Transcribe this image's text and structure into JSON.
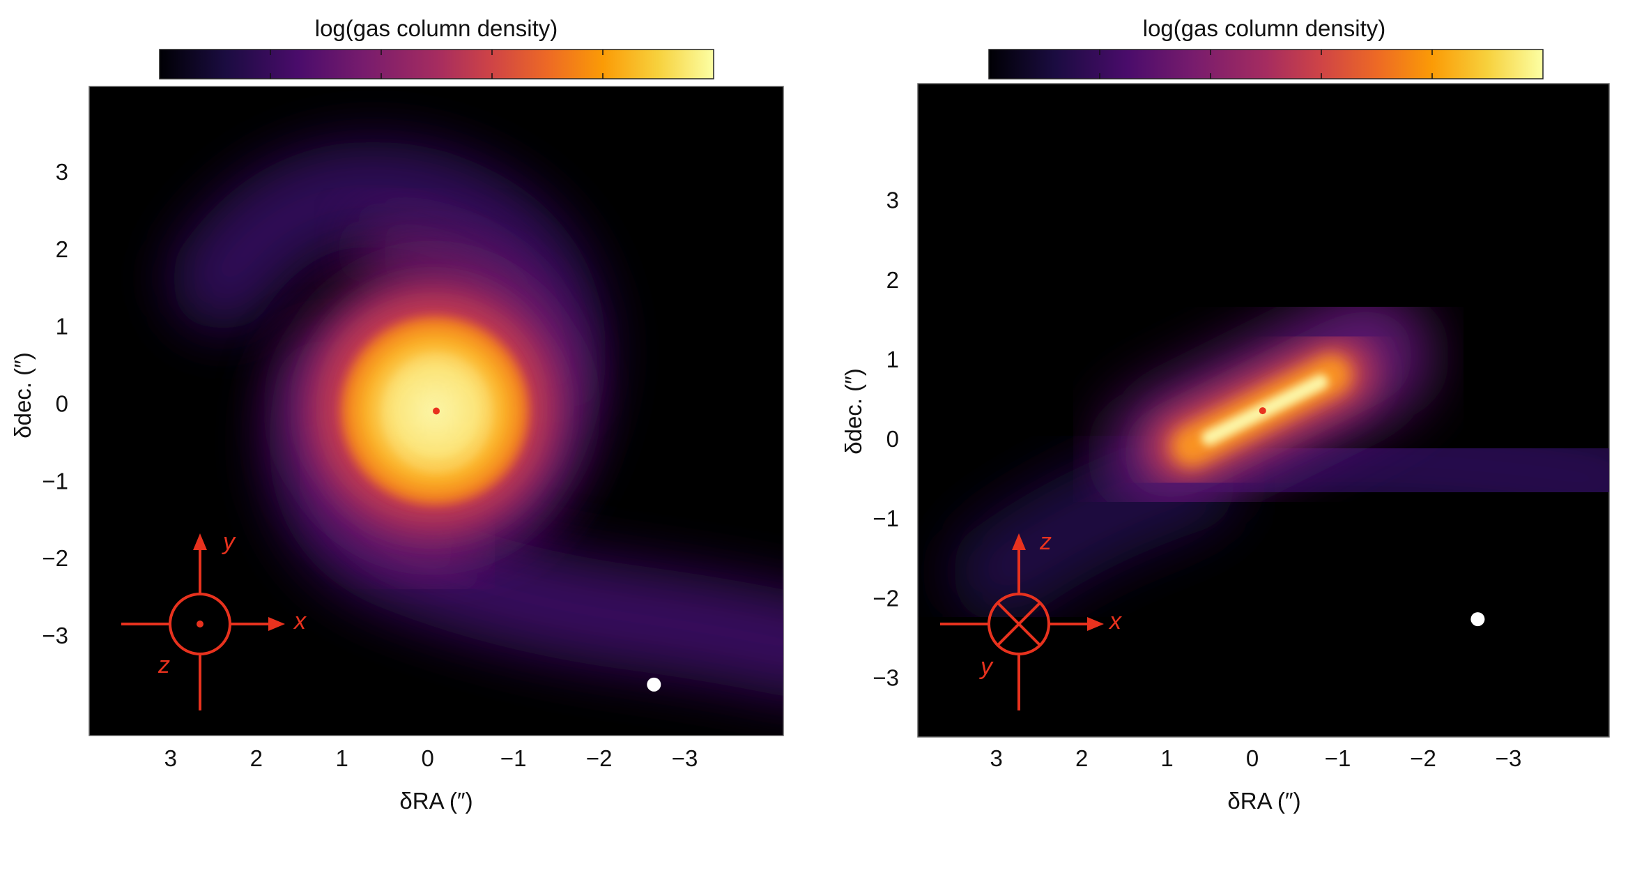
{
  "chart_data": [
    {
      "type": "heatmap",
      "panel": "left",
      "colorbar": {
        "label": "log(gas column density)",
        "colormap": "inferno",
        "position": "top"
      },
      "xlabel": "δRA (″)",
      "ylabel": "δdec. (″)",
      "xlim": [
        3.95,
        -4.15
      ],
      "ylim": [
        -4.3,
        4.1
      ],
      "xticks": [
        3,
        2,
        1,
        0,
        -1,
        -2,
        -3
      ],
      "xtick_labels": [
        "3",
        "2",
        "1",
        "0",
        "−1",
        "−2",
        "−3"
      ],
      "yticks": [
        3,
        2,
        1,
        0,
        -1,
        -2,
        -3
      ],
      "ytick_labels": [
        "3",
        "2",
        "1",
        "0",
        "−1",
        "−2",
        "−3"
      ],
      "grid": false,
      "markers": [
        {
          "name": "central star",
          "x": -0.1,
          "y": -0.1,
          "color": "#e8321e"
        },
        {
          "name": "white dot",
          "x": -2.64,
          "y": -3.64,
          "color": "#ffffff"
        }
      ],
      "compass": {
        "x": "x",
        "y": "y",
        "z": "z",
        "z_symbol": "out-of-page (dot)"
      },
      "structure": "face-on spiral: bright disk at center with two purple spiral arms"
    },
    {
      "type": "heatmap",
      "panel": "right",
      "colorbar": {
        "label": "log(gas column density)",
        "colormap": "inferno",
        "position": "top"
      },
      "xlabel": "δRA (″)",
      "ylabel": "δdec. (″)",
      "xlim": [
        3.92,
        -4.18
      ],
      "ylim": [
        -3.75,
        4.46
      ],
      "xticks": [
        3,
        2,
        1,
        0,
        -1,
        -2,
        -3
      ],
      "xtick_labels": [
        "3",
        "2",
        "1",
        "0",
        "−1",
        "−2",
        "−3"
      ],
      "yticks": [
        3,
        2,
        1,
        0,
        -1,
        -2,
        -3
      ],
      "ytick_labels": [
        "3",
        "2",
        "1",
        "0",
        "−1",
        "−2",
        "−3"
      ],
      "grid": false,
      "markers": [
        {
          "name": "central star",
          "x": -0.12,
          "y": 0.35,
          "color": "#e8321e"
        },
        {
          "name": "white dot",
          "x": -2.64,
          "y": -2.27,
          "color": "#ffffff"
        }
      ],
      "compass": {
        "x": "x",
        "y": "y",
        "z": "z",
        "y_symbol": "into-page (cross)"
      },
      "structure": "edge-on disk elongated from lower-left to upper-right with diffuse purple envelope"
    }
  ],
  "colors": {
    "accent": "#e8321e",
    "background": "#000000"
  }
}
